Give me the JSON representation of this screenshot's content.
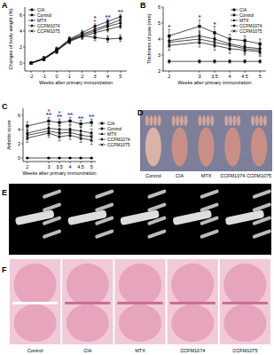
{
  "chart_data": [
    {
      "type": "line",
      "title": "A",
      "x_label": "Weeks after primary immunization",
      "y_label": "Changes of body weight (%)",
      "x": [
        -2,
        -1,
        0,
        1,
        2,
        3,
        4,
        5
      ],
      "xlim": [
        -2.5,
        5.5
      ],
      "xticks": [
        -2,
        -1,
        0,
        1,
        2,
        3,
        4,
        5
      ],
      "ylim": [
        -1,
        7
      ],
      "yticks": [
        0,
        2,
        4,
        6
      ],
      "grid": false,
      "legend": "upper left",
      "series": [
        {
          "name": "CIA",
          "color": "#000000",
          "marker": "square",
          "values": [
            0,
            0.5,
            1.6,
            2.8,
            3.4,
            3.2,
            3.0,
            3.1
          ],
          "errors": [
            0,
            0.2,
            0.3,
            0.3,
            0.4,
            0.4,
            0.4,
            0.4
          ]
        },
        {
          "name": "Control",
          "color": "#000000",
          "marker": "circle",
          "values": [
            0,
            0.6,
            1.7,
            3.0,
            3.8,
            4.6,
            5.2,
            5.8
          ],
          "errors": [
            0,
            0.2,
            0.3,
            0.3,
            0.3,
            0.3,
            0.3,
            0.3
          ]
        },
        {
          "name": "MTX",
          "color": "#000000",
          "marker": "triangle",
          "values": [
            0,
            0.5,
            1.5,
            2.7,
            3.3,
            3.8,
            4.2,
            4.6
          ],
          "errors": [
            0,
            0.2,
            0.3,
            0.3,
            0.3,
            0.3,
            0.3,
            0.3
          ]
        },
        {
          "name": "CCFM1074",
          "color": "#000000",
          "marker": "diamond",
          "values": [
            0,
            0.6,
            1.6,
            2.8,
            3.5,
            4.0,
            4.6,
            5.0
          ],
          "errors": [
            0,
            0.2,
            0.3,
            0.3,
            0.3,
            0.3,
            0.3,
            0.3
          ]
        },
        {
          "name": "CCFM1075",
          "color": "#000000",
          "marker": "x",
          "values": [
            0,
            0.5,
            1.5,
            2.9,
            3.6,
            4.2,
            4.8,
            5.4
          ],
          "errors": [
            0,
            0.2,
            0.3,
            0.3,
            0.3,
            0.3,
            0.3,
            0.3
          ]
        }
      ],
      "annotations": [
        {
          "text": "*",
          "x": 3,
          "color": "#e0218a"
        },
        {
          "text": "*",
          "x": 3,
          "color": "#1f3fbf"
        },
        {
          "text": "**",
          "x": 4,
          "color": "#1f3fbf"
        },
        {
          "text": "**",
          "x": 5,
          "color": "#1f3fbf"
        }
      ]
    },
    {
      "type": "line",
      "title": "B",
      "x_label": "Weeks after primary immunization",
      "y_label": "Thickness of paw (mm)",
      "x": [
        2,
        3,
        3.5,
        4,
        4.5,
        5
      ],
      "xlim": [
        1.8,
        5.2
      ],
      "xticks": [
        2,
        3,
        3.5,
        4,
        4.5,
        5
      ],
      "ylim": [
        2,
        6
      ],
      "yticks": [
        2,
        3,
        4,
        5,
        6
      ],
      "grid": false,
      "legend": "upper right",
      "series": [
        {
          "name": "CIA",
          "color": "#000000",
          "marker": "square",
          "values": [
            4.2,
            4.8,
            4.4,
            4.0,
            3.9,
            3.7
          ],
          "errors": [
            0.4,
            0.4,
            0.4,
            0.3,
            0.3,
            0.3
          ]
        },
        {
          "name": "Control",
          "color": "#000000",
          "marker": "circle",
          "values": [
            2.6,
            2.6,
            2.6,
            2.6,
            2.6,
            2.6
          ],
          "errors": [
            0.1,
            0.1,
            0.1,
            0.1,
            0.1,
            0.1
          ]
        },
        {
          "name": "MTX",
          "color": "#000000",
          "marker": "triangle",
          "values": [
            3.6,
            3.8,
            3.6,
            3.4,
            3.3,
            3.2
          ],
          "errors": [
            0.3,
            0.3,
            0.3,
            0.3,
            0.3,
            0.3
          ]
        },
        {
          "name": "CCFM1074",
          "color": "#000000",
          "marker": "diamond",
          "values": [
            3.9,
            4.2,
            4.0,
            3.7,
            3.5,
            3.4
          ],
          "errors": [
            0.3,
            0.3,
            0.3,
            0.3,
            0.3,
            0.3
          ]
        },
        {
          "name": "CCFM1075",
          "color": "#000000",
          "marker": "x",
          "values": [
            3.8,
            4.0,
            3.8,
            3.6,
            3.4,
            3.3
          ],
          "errors": [
            0.3,
            0.3,
            0.3,
            0.3,
            0.3,
            0.3
          ]
        }
      ],
      "annotations": [
        {
          "text": "*",
          "x": 2,
          "color": "#1f3fbf"
        },
        {
          "text": "*",
          "x": 3,
          "color": "#1f3fbf"
        },
        {
          "text": "*",
          "x": 3.5,
          "color": "#1f3fbf"
        }
      ]
    },
    {
      "type": "line",
      "title": "C",
      "x_label": "Weeks after primary immunization",
      "y_label": "Arthritis score",
      "x": [
        2,
        3,
        3.5,
        4,
        4.5,
        5
      ],
      "xlim": [
        1.8,
        5.2
      ],
      "xticks": [
        2,
        3,
        3.5,
        4,
        4.5,
        5
      ],
      "ylim": [
        -0.5,
        7
      ],
      "yticks": [
        0,
        2,
        4,
        6
      ],
      "grid": false,
      "legend": "right",
      "series": [
        {
          "name": "CIA",
          "color": "#000000",
          "marker": "square",
          "values": [
            4.5,
            5.2,
            5.0,
            5.2,
            4.8,
            5.0
          ],
          "errors": [
            0.6,
            0.5,
            0.5,
            0.5,
            0.5,
            0.5
          ]
        },
        {
          "name": "Control",
          "color": "#000000",
          "marker": "circle",
          "values": [
            0,
            0,
            0,
            0,
            0,
            0
          ],
          "errors": [
            0,
            0,
            0,
            0,
            0,
            0
          ]
        },
        {
          "name": "MTX",
          "color": "#000000",
          "marker": "triangle",
          "values": [
            2.8,
            3.5,
            3.0,
            3.2,
            2.8,
            2.5
          ],
          "errors": [
            0.6,
            0.6,
            0.6,
            0.6,
            0.6,
            0.6
          ]
        },
        {
          "name": "CCFM1074",
          "color": "#000000",
          "marker": "diamond",
          "values": [
            3.5,
            4.2,
            4.0,
            4.0,
            3.8,
            3.5
          ],
          "errors": [
            0.6,
            0.6,
            0.6,
            0.6,
            0.6,
            0.6
          ]
        },
        {
          "name": "CCFM1075",
          "color": "#000000",
          "marker": "x",
          "values": [
            3.2,
            3.8,
            3.5,
            3.6,
            3.2,
            3.0
          ],
          "errors": [
            0.6,
            0.6,
            0.6,
            0.6,
            0.6,
            0.6
          ]
        }
      ],
      "annotations": [
        {
          "text": "**",
          "x": 3,
          "color": "#1f3fbf"
        },
        {
          "text": "*",
          "x": 3,
          "color": "#e0218a"
        },
        {
          "text": "**",
          "x": 3.5,
          "color": "#1f3fbf"
        },
        {
          "text": "*",
          "x": 3.5,
          "color": "#e0218a"
        },
        {
          "text": "**",
          "x": 4,
          "color": "#1f3fbf"
        },
        {
          "text": "**",
          "x": 4.5,
          "color": "#1f3fbf"
        },
        {
          "text": "**",
          "x": 5,
          "color": "#1f3fbf"
        }
      ]
    }
  ],
  "image_panels": [
    {
      "label": "D",
      "captions": [
        "Control",
        "CIA",
        "MTX",
        "CCFM1074",
        "CCFM1075"
      ]
    },
    {
      "label": "E"
    },
    {
      "label": "F",
      "captions": [
        "Control",
        "CIA",
        "MTX",
        "CCFM1074",
        "CCFM1075"
      ]
    }
  ]
}
